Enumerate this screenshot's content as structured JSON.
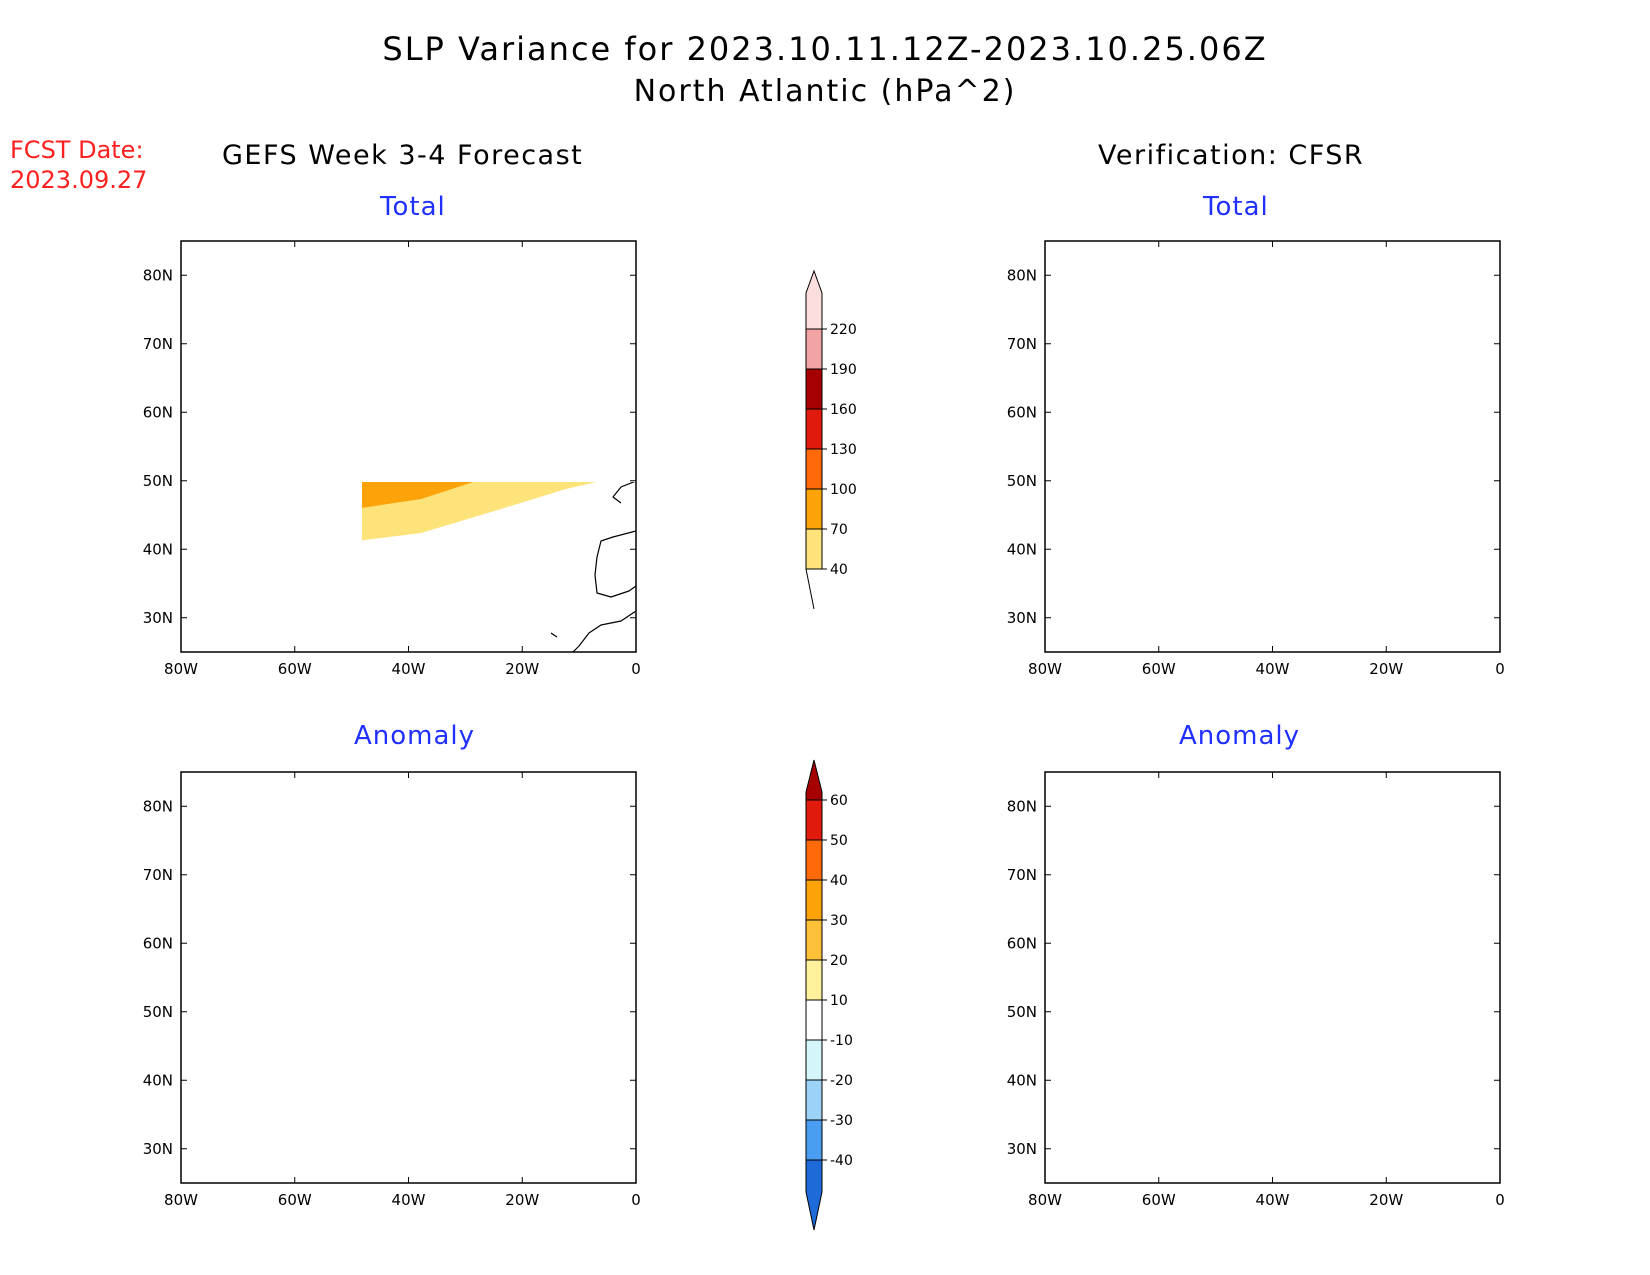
{
  "title": "SLP Variance for 2023.10.11.12Z-2023.10.25.06Z",
  "subtitle": "North Atlantic (hPa^2)",
  "fcst_date_label": "FCST Date:",
  "fcst_date": "2023.09.27",
  "left_column_title": "GEFS Week 3-4 Forecast",
  "right_column_title": "Verification: CFSR",
  "panels": [
    {
      "id": "gefs-total",
      "subtitle": "Total",
      "field": "total"
    },
    {
      "id": "cfsr-total",
      "subtitle": "Total",
      "field": "total"
    },
    {
      "id": "gefs-anomaly",
      "subtitle": "Anomaly",
      "field": "anomaly"
    },
    {
      "id": "cfsr-anomaly",
      "subtitle": "Anomaly",
      "field": "anomaly"
    }
  ],
  "map": {
    "lon_range": [
      -80,
      0
    ],
    "lat_range": [
      25,
      85
    ],
    "lon_ticks": [
      "80W",
      "60W",
      "40W",
      "20W",
      "0"
    ],
    "lat_ticks": [
      "30N",
      "40N",
      "50N",
      "60N",
      "70N",
      "80N"
    ]
  },
  "colorbars": {
    "total": {
      "levels": [
        "40",
        "70",
        "100",
        "130",
        "160",
        "190",
        "220"
      ],
      "colors": [
        "#fde37a",
        "#fda30a",
        "#fe6a0a",
        "#e01a0c",
        "#a50101",
        "#f2a3a3",
        "#fddede"
      ]
    },
    "anomaly": {
      "levels": [
        "60",
        "50",
        "40",
        "30",
        "20",
        "10",
        "-10",
        "-20",
        "-30",
        "-40"
      ],
      "colors": [
        "#a50101",
        "#e01a0c",
        "#fe6a0a",
        "#fda30a",
        "#fdc039",
        "#fdf29b",
        "#ffffff",
        "#d4f6fa",
        "#9cd2f7",
        "#4a9ef2",
        "#1e6ad8"
      ]
    }
  }
}
